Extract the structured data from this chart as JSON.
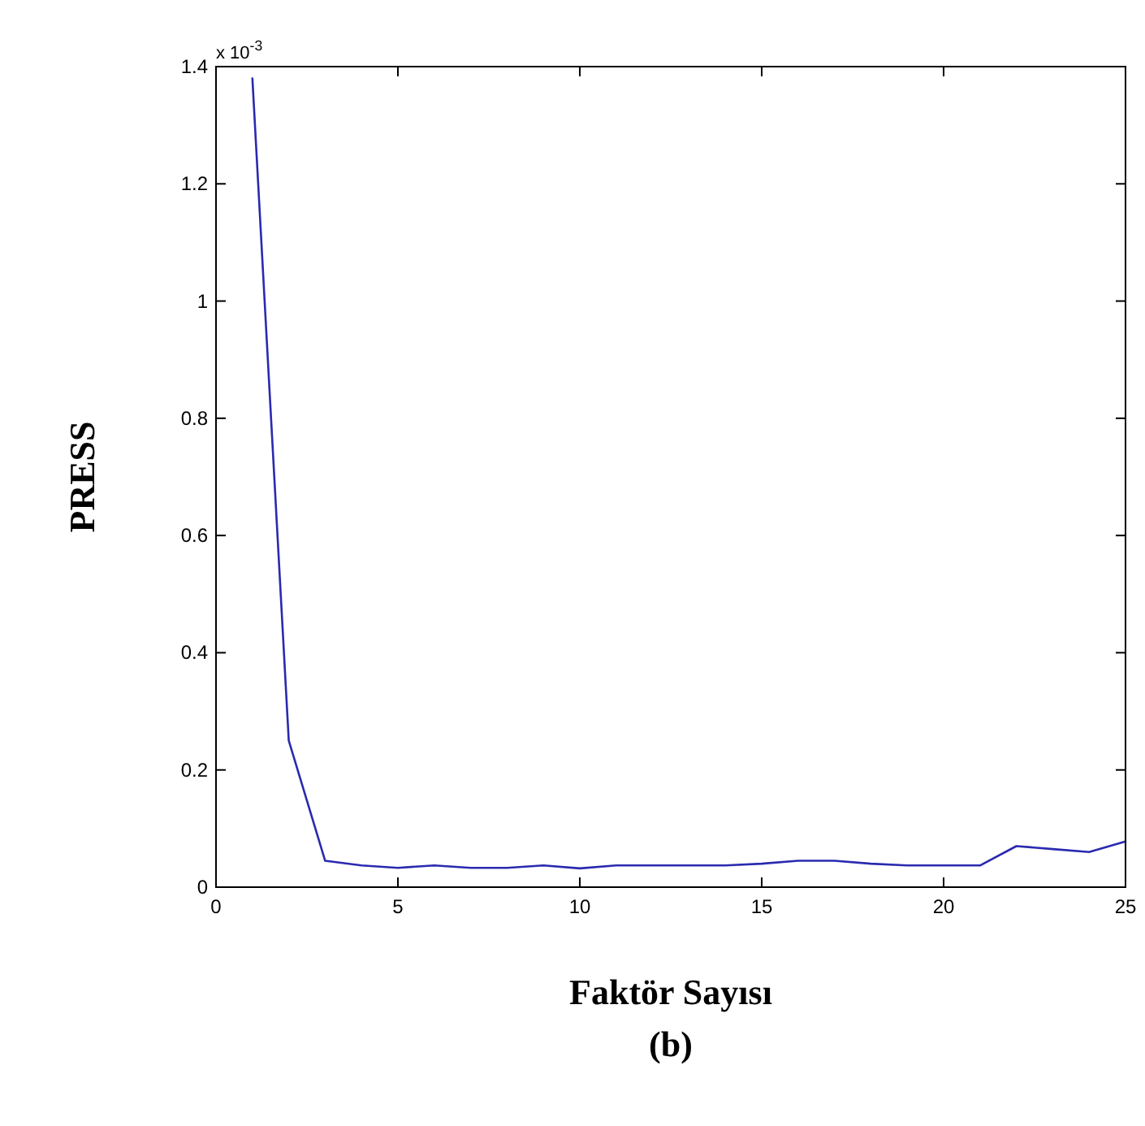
{
  "chart_data": {
    "type": "line",
    "xlabel": "Faktör Sayısı",
    "ylabel": "PRESS",
    "annotations": [
      "x 10$^{-3}$",
      "(b)"
    ],
    "x": [
      1,
      2,
      3,
      4,
      5,
      6,
      7,
      8,
      9,
      10,
      11,
      12,
      13,
      14,
      15,
      16,
      17,
      18,
      19,
      20,
      21,
      22,
      23,
      24,
      25
    ],
    "series": [
      {
        "color": "#2a2ab0",
        "values": [
          1.38,
          0.25,
          0.045,
          0.037,
          0.033,
          0.037,
          0.033,
          0.033,
          0.037,
          0.032,
          0.037,
          0.037,
          0.037,
          0.037,
          0.04,
          0.045,
          0.045,
          0.04,
          0.037,
          0.037,
          0.037,
          0.07,
          0.065,
          0.06,
          0.078
        ]
      }
    ],
    "xlim": [
      0,
      25
    ],
    "xticks": [
      0,
      5,
      10,
      15,
      20,
      25
    ],
    "ylim": [
      0,
      1.4
    ],
    "yticks": [
      0,
      0.2,
      0.4,
      0.6,
      0.8,
      1,
      1.2,
      1.4
    ],
    "grid": false,
    "marker": "none",
    "line_style": "solid"
  }
}
